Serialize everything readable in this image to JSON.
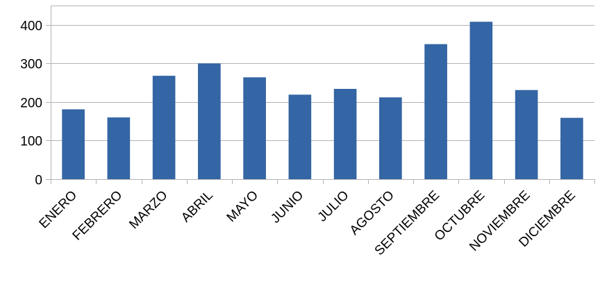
{
  "chart_data": {
    "type": "bar",
    "title": "",
    "xlabel": "",
    "ylabel": "",
    "categories": [
      "ENERO",
      "FEBRERO",
      "MARZO",
      "ABRIL",
      "MAYO",
      "JUNIO",
      "JULIO",
      "AGOSTO",
      "SEPTIEMBRE",
      "OCTUBRE",
      "NOVIEMBRE",
      "DICIEMBRE"
    ],
    "values": [
      181,
      160,
      268,
      300,
      264,
      219,
      234,
      212,
      350,
      408,
      231,
      159
    ],
    "ylim": [
      0,
      450
    ],
    "yticks": [
      0,
      100,
      200,
      300,
      400
    ],
    "grid": true,
    "legend": "none",
    "bar_color": "#3465a4"
  }
}
